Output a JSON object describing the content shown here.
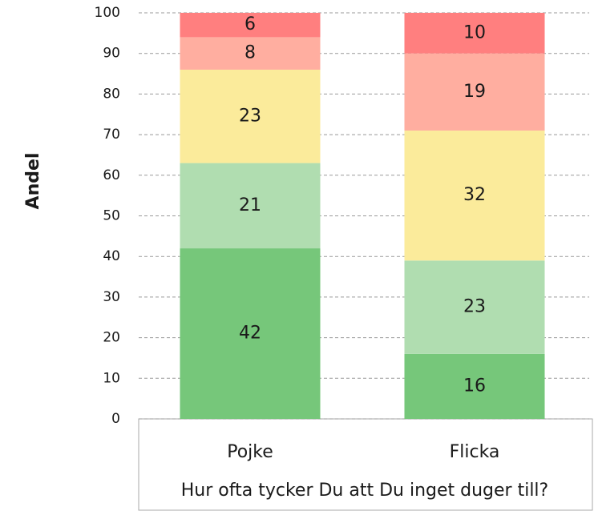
{
  "chart_data": {
    "type": "stacked_bar",
    "y_label": "Andel",
    "x_label": "Hur ofta tycker Du att Du inget duger till?",
    "categories": [
      "Pojke",
      "Flicka"
    ],
    "series": [
      {
        "color": "#76c77a",
        "values": [
          42,
          16
        ]
      },
      {
        "color": "#b0ddb0",
        "values": [
          21,
          23
        ]
      },
      {
        "color": "#fbeb9b",
        "values": [
          23,
          32
        ]
      },
      {
        "color": "#ffaea0",
        "values": [
          8,
          19
        ]
      },
      {
        "color": "#ff7f7f",
        "values": [
          6,
          10
        ]
      }
    ],
    "ylim": [
      0,
      100
    ],
    "yticks": [
      0,
      10,
      20,
      30,
      40,
      50,
      60,
      70,
      80,
      90,
      100
    ],
    "grid": true
  }
}
